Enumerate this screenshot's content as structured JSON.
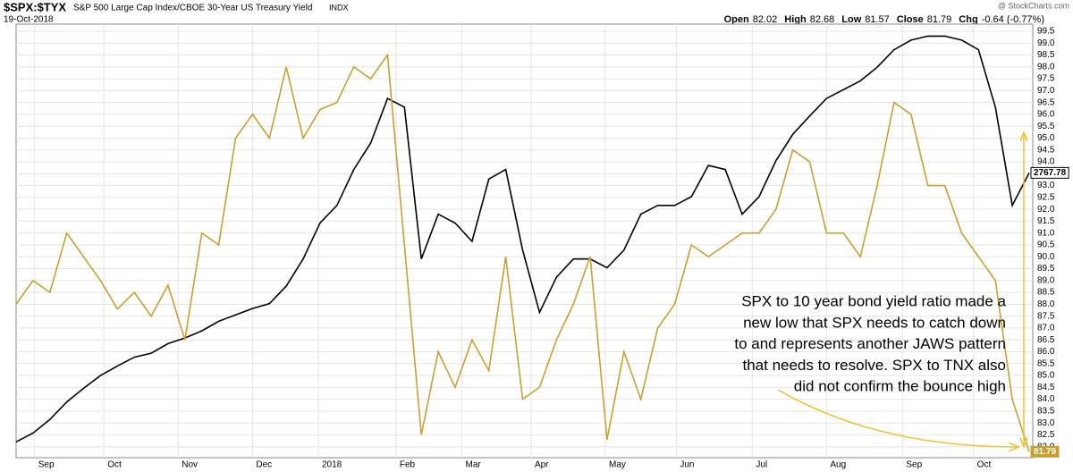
{
  "header": {
    "symbol": "$SPX:$TYX",
    "name": "S&P 500 Large Cap Index/CBOE 30-Year US Treasury Yield",
    "exchange": "INDX",
    "date": "19-Oct-2018",
    "source": "@ StockCharts.com",
    "quote": [
      {
        "label": "Open",
        "value": "82.02"
      },
      {
        "label": "High",
        "value": "82.68"
      },
      {
        "label": "Low",
        "value": "81.57"
      },
      {
        "label": "Close",
        "value": "81.79"
      },
      {
        "label": "Chg",
        "value": "-0.64 (-0.77%)"
      }
    ]
  },
  "chart_data": {
    "type": "line",
    "annotation": [
      "SPX to 10 year bond yield ratio made a",
      "new low that SPX needs to catch down",
      "to and represents another JAWS pattern",
      "that needs to resolve. SPX to TNX also",
      "did not confirm the bounce high"
    ],
    "x": [
      0,
      1,
      2,
      3,
      4,
      5,
      6,
      7,
      8,
      9,
      10,
      11,
      12,
      13,
      14,
      15,
      16,
      17,
      18,
      19,
      20,
      21,
      22,
      23,
      24,
      25,
      26,
      27,
      28,
      29,
      30,
      31,
      32,
      33,
      34,
      35,
      36,
      37,
      38,
      39,
      40,
      41,
      42,
      43,
      44,
      45,
      46,
      47,
      48,
      49,
      50,
      51,
      52,
      53,
      54,
      55,
      56,
      57,
      58,
      59,
      60
    ],
    "xlim": [
      0,
      60
    ],
    "xticks": [
      {
        "value": 1.1,
        "label": "Sep"
      },
      {
        "value": 5.2,
        "label": "Oct"
      },
      {
        "value": 9.6,
        "label": "Nov"
      },
      {
        "value": 14.0,
        "label": "Dec"
      },
      {
        "value": 17.9,
        "label": "2018"
      },
      {
        "value": 22.5,
        "label": "Feb"
      },
      {
        "value": 26.4,
        "label": "Mar"
      },
      {
        "value": 30.5,
        "label": "Apr"
      },
      {
        "value": 34.9,
        "label": "May"
      },
      {
        "value": 39.1,
        "label": "Jun"
      },
      {
        "value": 43.6,
        "label": "Jul"
      },
      {
        "value": 48.0,
        "label": "Aug"
      },
      {
        "value": 52.5,
        "label": "Sep"
      },
      {
        "value": 56.7,
        "label": "Oct"
      }
    ],
    "ylim": [
      81.8,
      99.8
    ],
    "yticks": [
      99.5,
      {
        "value": 99,
        "label": "99.0"
      },
      98.5,
      {
        "value": 98,
        "label": "98.0"
      },
      97.5,
      {
        "value": 97,
        "label": "97.0"
      },
      96.5,
      {
        "value": 96,
        "label": "96.0"
      },
      95.5,
      {
        "value": 95,
        "label": "95.0"
      },
      94.5,
      {
        "value": 94,
        "label": "94.0"
      },
      93.5,
      {
        "value": 93,
        "label": "93.0"
      },
      92.5,
      {
        "value": 92,
        "label": "92.0"
      },
      91.5,
      {
        "value": 91,
        "label": "91.0"
      },
      90.5,
      {
        "value": 90,
        "label": "90.0"
      },
      89.5,
      {
        "value": 89,
        "label": "89.0"
      },
      88.5,
      {
        "value": 88,
        "label": "88.0"
      },
      87.5,
      {
        "value": 87,
        "label": "87.0"
      },
      86.5,
      {
        "value": 86,
        "label": "86.0"
      },
      85.5,
      {
        "value": 85,
        "label": "85.0"
      },
      84.5,
      {
        "value": 84,
        "label": "84.0"
      },
      83.5,
      {
        "value": 83,
        "label": "83.0"
      },
      82.5,
      {
        "value": 82,
        "label": "82.0"
      }
    ],
    "y2lim": [
      2419,
      2954
    ],
    "grid": true,
    "series": [
      {
        "color": "#000000",
        "axis": "y2",
        "values": [
          2431,
          2442,
          2459,
          2481,
          2498,
          2514,
          2526,
          2537,
          2542,
          2554,
          2561,
          2570,
          2582,
          2590,
          2598,
          2604,
          2626,
          2660,
          2705,
          2727,
          2772,
          2805,
          2861,
          2850,
          2660,
          2716,
          2705,
          2682,
          2760,
          2772,
          2671,
          2593,
          2637,
          2660,
          2660,
          2649,
          2671,
          2716,
          2727,
          2727,
          2738,
          2777,
          2772,
          2716,
          2738,
          2783,
          2816,
          2839,
          2861,
          2872,
          2883,
          2900,
          2922,
          2934,
          2939,
          2939,
          2934,
          2922,
          2850,
          2727,
          2767.78
        ]
      },
      {
        "color": "#c9a030",
        "values": [
          88.0,
          89.0,
          88.5,
          91.0,
          90.0,
          89.0,
          87.8,
          88.5,
          87.5,
          88.8,
          86.5,
          91.0,
          90.5,
          95.0,
          96.0,
          95.0,
          98.0,
          95.0,
          96.2,
          96.5,
          98.0,
          97.5,
          98.5,
          90.5,
          82.5,
          86.0,
          84.5,
          86.5,
          85.2,
          90.0,
          84.0,
          84.5,
          86.5,
          88.0,
          90.0,
          82.3,
          86.0,
          84.0,
          87.0,
          88.0,
          90.5,
          90.0,
          90.5,
          91.0,
          91.0,
          92.0,
          94.5,
          94.0,
          91.0,
          91.0,
          90.0,
          93.0,
          96.5,
          96.0,
          93.0,
          93.0,
          91.0,
          90.0,
          89.0,
          84.0,
          81.79
        ]
      }
    ]
  }
}
